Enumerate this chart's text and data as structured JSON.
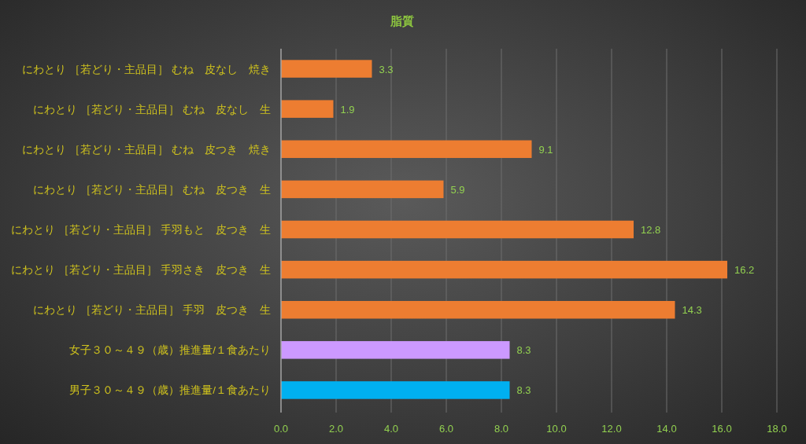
{
  "chart_data": {
    "type": "bar",
    "orientation": "horizontal",
    "title": "脂質",
    "categories": [
      "にわとり ［若どり・主品目］ むね　皮なし　焼き",
      "にわとり ［若どり・主品目］ むね　皮なし　生",
      "にわとり ［若どり・主品目］ むね　皮つき　焼き",
      "にわとり ［若どり・主品目］ むね　皮つき　生",
      "にわとり ［若どり・主品目］ 手羽もと　皮つき　生",
      "にわとり ［若どり・主品目］ 手羽さき　皮つき　生",
      "にわとり ［若どり・主品目］ 手羽　皮つき　生",
      "女子３０～４９（歳）推進量/１食あたり",
      "男子３０～４９（歳）推進量/１食あたり"
    ],
    "values": [
      3.3,
      1.9,
      9.1,
      5.9,
      12.8,
      16.2,
      14.3,
      8.3,
      8.3
    ],
    "colors": [
      "#ed7d31",
      "#ed7d31",
      "#ed7d31",
      "#ed7d31",
      "#ed7d31",
      "#ed7d31",
      "#ed7d31",
      "#cc99ff",
      "#00b0f0"
    ],
    "xlim": [
      0,
      18
    ],
    "xticks": [
      {
        "value": 0,
        "label": "0.0"
      },
      {
        "value": 2,
        "label": "2.0"
      },
      {
        "value": 4,
        "label": "4.0"
      },
      {
        "value": 6,
        "label": "6.0"
      },
      {
        "value": 8,
        "label": "8.0"
      },
      {
        "value": 10,
        "label": "10.0"
      },
      {
        "value": 12,
        "label": "12.0"
      },
      {
        "value": 14,
        "label": "14.0"
      },
      {
        "value": 16,
        "label": "16.0"
      },
      {
        "value": 18,
        "label": "18.0"
      }
    ],
    "grid": "x",
    "data_labels": true
  }
}
